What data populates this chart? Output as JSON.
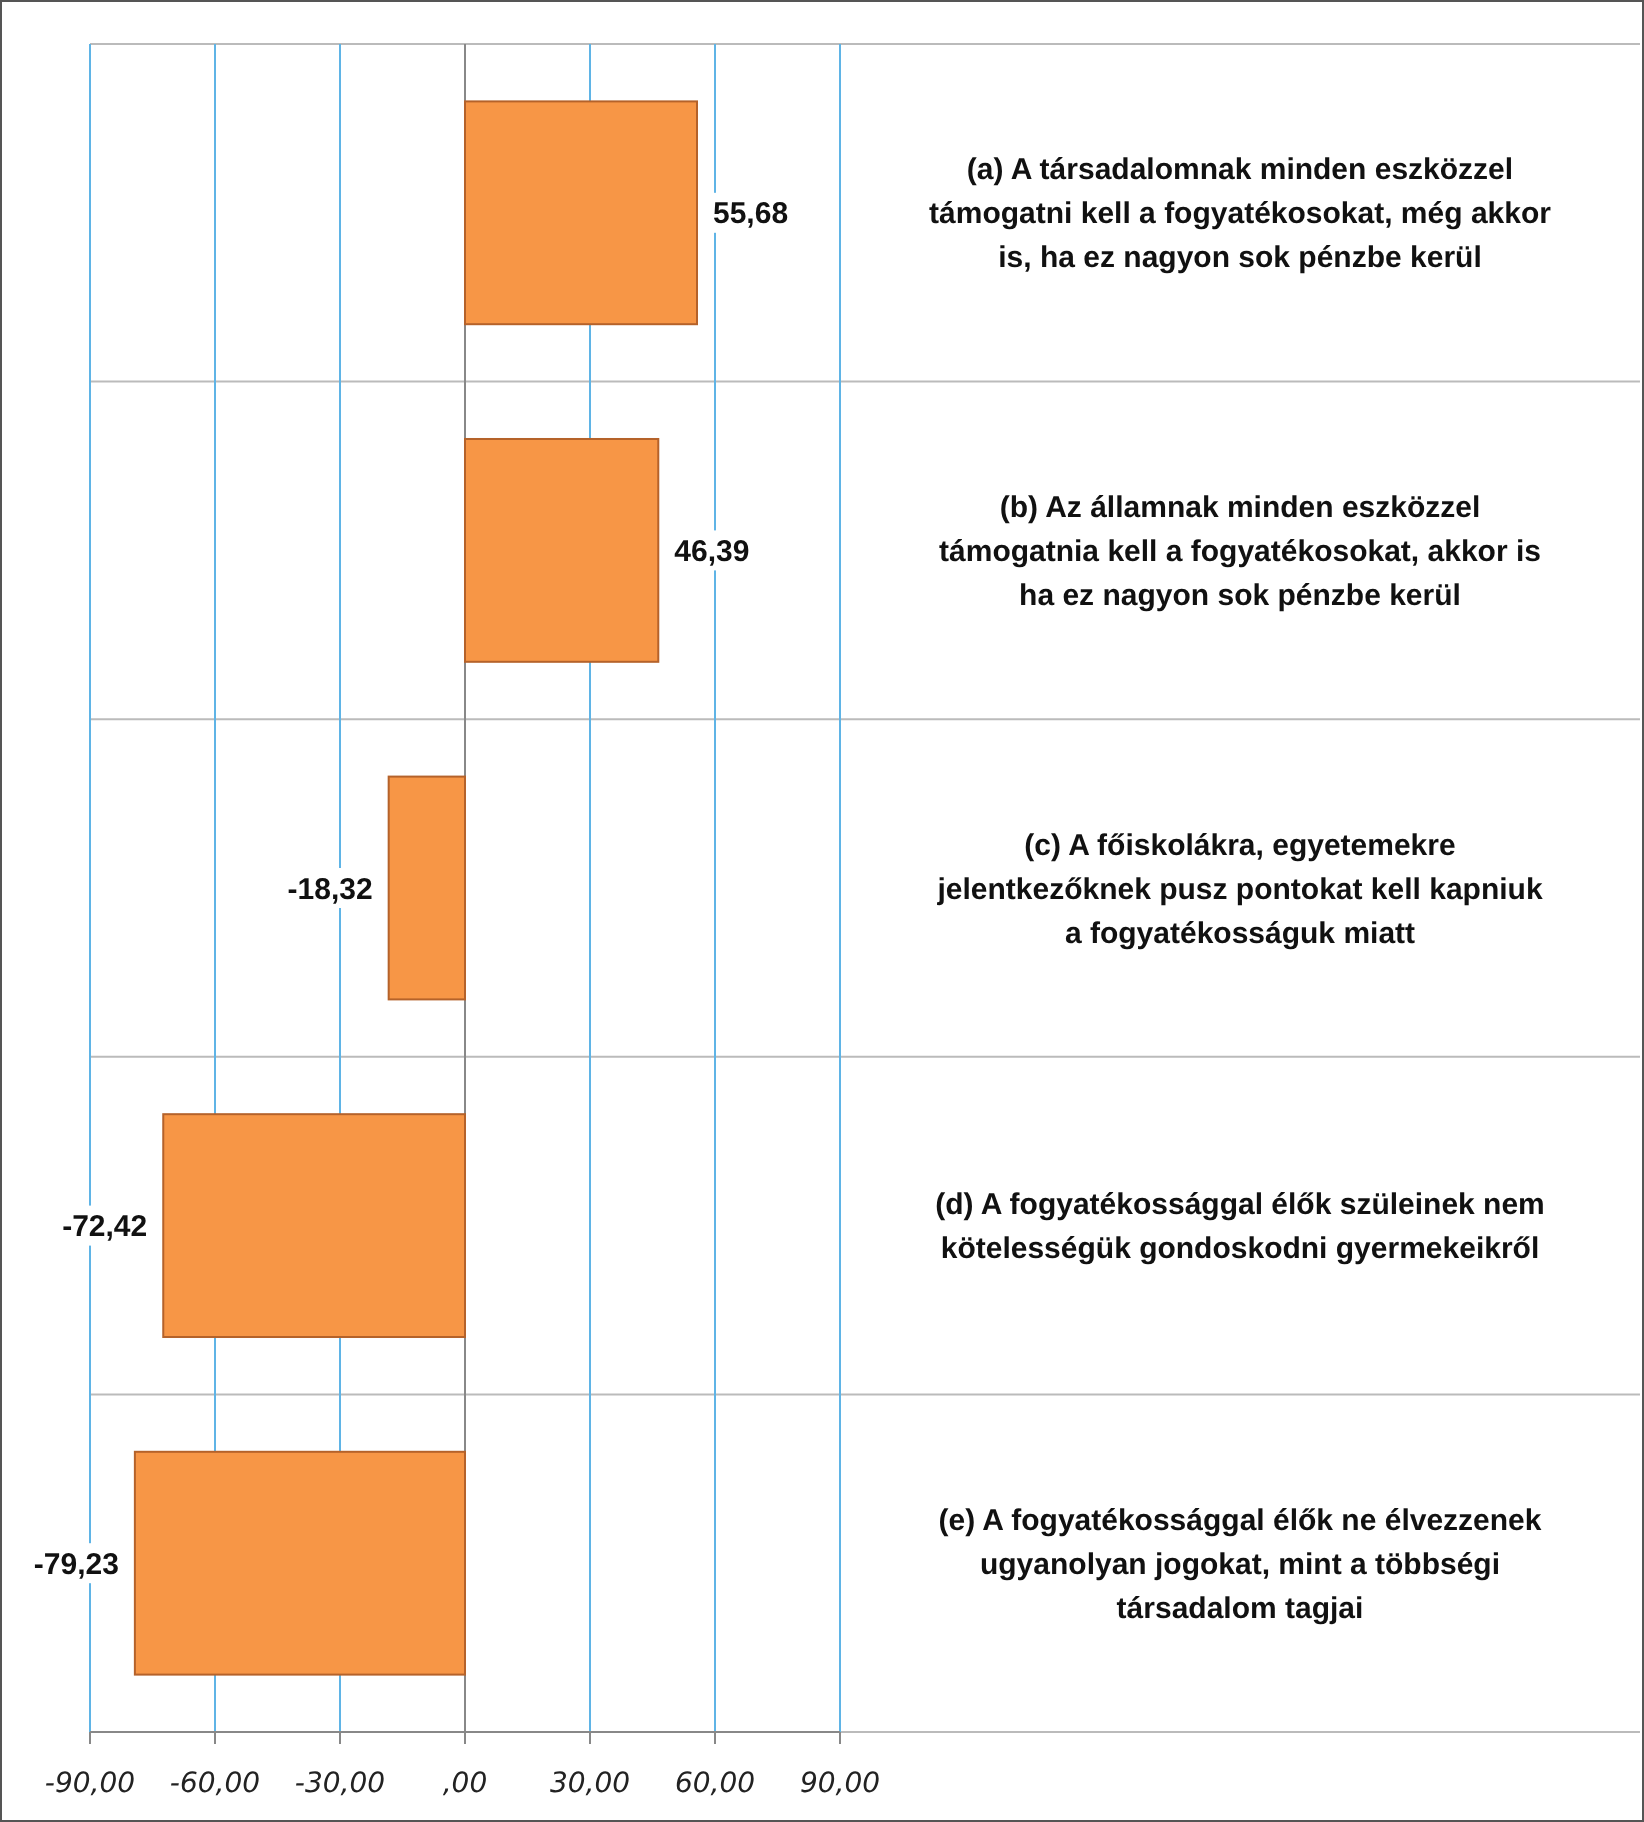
{
  "chart_data": {
    "type": "bar",
    "orientation": "horizontal",
    "categories": [
      "(a) A társadalomnak minden eszközzel támogatni kell a fogyatékosokat, még akkor is, ha ez nagyon sok pénzbe kerül",
      "(b) Az államnak minden eszközzel támogatnia kell a fogyatékosokat, akkor is ha ez nagyon sok pénzbe kerül",
      "(c) A főiskolákra, egyetemekre jelentkezőknek pusz pontokat kell kapniuk a fogyatékosságuk miatt",
      "(d) A fogyatékossággal élők szüleinek nem kötelességük gondoskodni gyermekeikről",
      "(e) A fogyatékossággal élők ne élvezzenek ugyanolyan jogokat, mint a többségi társadalom tagjai"
    ],
    "values": [
      55.68,
      46.39,
      -18.32,
      -72.42,
      -79.23
    ],
    "value_labels": [
      "55,68",
      "46,39",
      "-18,32",
      "-72,42",
      "-79,23"
    ],
    "color": "#f79646",
    "xlim": [
      -90,
      90
    ],
    "xticks": [
      {
        "value": -90,
        "label": "-90,00"
      },
      {
        "value": -60,
        "label": "-60,00"
      },
      {
        "value": -30,
        "label": "-30,00"
      },
      {
        "value": 0,
        "label": ",00"
      },
      {
        "value": 30,
        "label": "30,00"
      },
      {
        "value": 60,
        "label": "60,00"
      },
      {
        "value": 90,
        "label": "90,00"
      }
    ],
    "grid": true
  }
}
